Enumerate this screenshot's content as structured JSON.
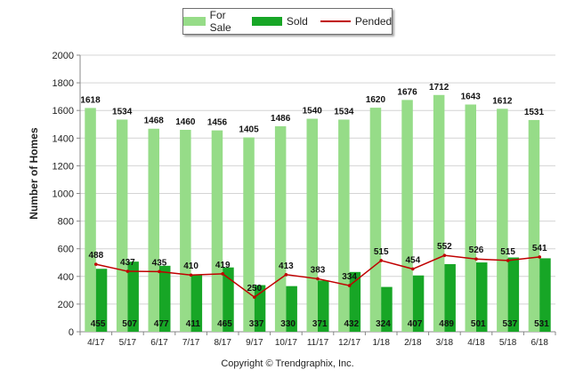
{
  "legend": {
    "for_sale": "For Sale",
    "sold": "Sold",
    "pended": "Pended"
  },
  "colors": {
    "for_sale": "#96dc88",
    "sold": "#17a626",
    "pended": "#c00000"
  },
  "footer": {
    "copyright": "Copyright © Trendgraphix, Inc."
  },
  "chart_data": {
    "type": "bar",
    "ylabel": "Number of Homes",
    "ylim": [
      0,
      2000
    ],
    "yticks": [
      0,
      200,
      400,
      600,
      800,
      1000,
      1200,
      1400,
      1600,
      1800,
      2000
    ],
    "grid": true,
    "legend_position": "top-center",
    "categories": [
      "4/17",
      "5/17",
      "6/17",
      "7/17",
      "8/17",
      "9/17",
      "10/17",
      "11/17",
      "12/17",
      "1/18",
      "2/18",
      "3/18",
      "4/18",
      "5/18",
      "6/18"
    ],
    "series": [
      {
        "name": "For Sale",
        "kind": "bar",
        "values": [
          1618,
          1534,
          1468,
          1460,
          1456,
          1405,
          1486,
          1540,
          1534,
          1620,
          1676,
          1712,
          1643,
          1612,
          1531
        ]
      },
      {
        "name": "Sold",
        "kind": "bar",
        "values": [
          455,
          507,
          477,
          411,
          465,
          337,
          330,
          371,
          432,
          324,
          407,
          489,
          501,
          537,
          531
        ]
      },
      {
        "name": "Pended",
        "kind": "line",
        "values": [
          488,
          437,
          435,
          410,
          419,
          250,
          413,
          383,
          334,
          515,
          454,
          552,
          526,
          515,
          541
        ]
      }
    ]
  }
}
